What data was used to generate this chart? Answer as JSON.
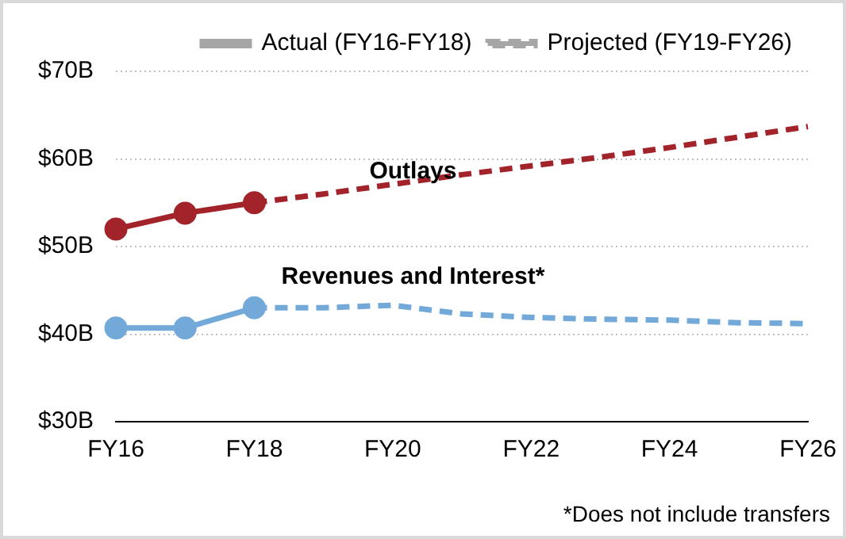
{
  "chart_data": {
    "type": "line",
    "categories": [
      "FY16",
      null,
      "FY18",
      null,
      "FY20",
      null,
      "FY22",
      null,
      "FY24",
      null,
      "FY26"
    ],
    "series": [
      {
        "name": "Outlays",
        "color": "#a3232b",
        "marker": "circle",
        "line_style": "solid",
        "values": [
          52,
          53.8,
          55,
          null,
          null,
          null,
          null,
          null,
          null,
          null,
          null
        ]
      },
      {
        "color": "#a3232b",
        "marker": "none",
        "line_style": "dashed",
        "values": [
          null,
          null,
          55,
          56,
          57.1,
          58.2,
          59.2,
          60.2,
          61.3,
          62.5,
          63.7
        ]
      },
      {
        "name": "Revenues and Interest*",
        "color": "#72a9d8",
        "marker": "circle",
        "line_style": "solid",
        "values": [
          40.7,
          40.7,
          43,
          null,
          null,
          null,
          null,
          null,
          null,
          null,
          null
        ]
      },
      {
        "color": "#72a9d8",
        "marker": "none",
        "line_style": "dashed",
        "values": [
          null,
          null,
          43,
          43,
          43.3,
          42.3,
          41.9,
          41.7,
          41.6,
          41.3,
          41.2
        ]
      },
      {
        "name": "Actual (FY16-FY18)",
        "color": "#a6a6a6",
        "marker": "circle",
        "line_style": "solid",
        "values": [
          null,
          null,
          null,
          null,
          null,
          null,
          null,
          null,
          null,
          null,
          null
        ]
      },
      {
        "name": "Projected (FY19-FY26)",
        "color": "#a6a6a6",
        "marker": "none",
        "line_style": "dashed",
        "values": [
          null,
          null,
          null,
          null,
          null,
          null,
          null,
          null,
          null,
          null,
          null
        ]
      }
    ],
    "ylim": [
      30,
      70
    ],
    "yticks": [
      {
        "value": 30,
        "label": "$30B"
      },
      {
        "value": 40,
        "label": "$40B"
      },
      {
        "value": 50,
        "label": "$50B"
      },
      {
        "value": 60,
        "label": "$60B"
      },
      {
        "value": 70,
        "label": "$70B"
      }
    ],
    "grid": "y",
    "legend": "top right",
    "annotations": [
      "*Does not include transfers"
    ]
  }
}
